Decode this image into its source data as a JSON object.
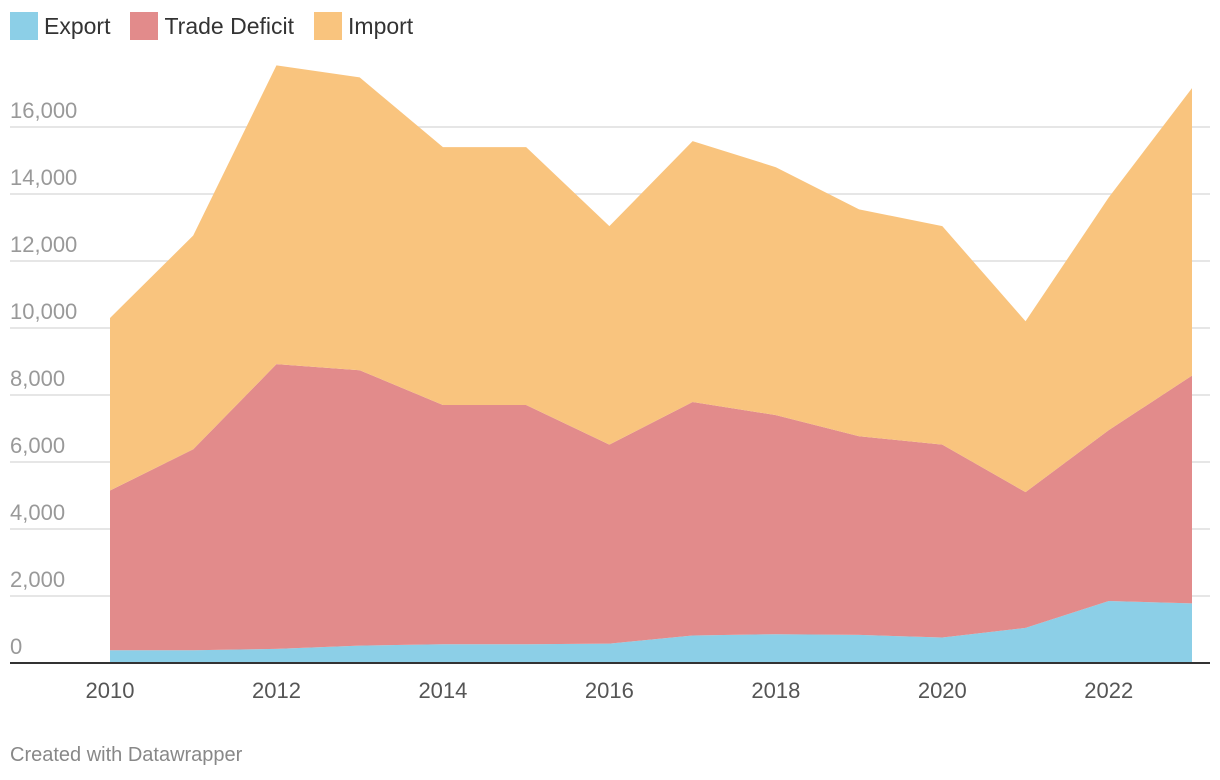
{
  "chart_data": {
    "type": "area",
    "stacked": true,
    "x": [
      2010,
      2011,
      2012,
      2013,
      2014,
      2015,
      2016,
      2017,
      2018,
      2019,
      2020,
      2021,
      2022,
      2023
    ],
    "series": [
      {
        "name": "Export",
        "color": "#8ccfe7",
        "values": [
          380,
          380,
          420,
          520,
          560,
          560,
          580,
          820,
          860,
          840,
          760,
          1050,
          1850,
          1780
        ]
      },
      {
        "name": "Trade Deficit",
        "color": "#e28b8b",
        "values": [
          4770,
          6000,
          8500,
          8220,
          7140,
          7140,
          5940,
          6970,
          6540,
          5930,
          5760,
          4050,
          5100,
          6800
        ]
      },
      {
        "name": "Import",
        "color": "#f9c47e",
        "values": [
          5150,
          6380,
          8920,
          8740,
          7700,
          7700,
          6520,
          7790,
          7400,
          6770,
          6520,
          5100,
          6950,
          8580
        ]
      }
    ],
    "yticks": [
      "0",
      "2,000",
      "4,000",
      "6,000",
      "8,000",
      "10,000",
      "12,000",
      "14,000",
      "16,000"
    ],
    "ytick_values": [
      0,
      2000,
      4000,
      6000,
      8000,
      10000,
      12000,
      14000,
      16000
    ],
    "xticks": [
      "2010",
      "2012",
      "2014",
      "2016",
      "2018",
      "2020",
      "2022"
    ],
    "xtick_values": [
      2010,
      2012,
      2014,
      2016,
      2018,
      2020,
      2022
    ],
    "ylim": [
      0,
      18000
    ],
    "xlim": [
      2010,
      2023
    ],
    "grid": true,
    "legend_position": "top-left"
  },
  "legend": [
    {
      "label": "Export",
      "color": "#8ccfe7"
    },
    {
      "label": "Trade Deficit",
      "color": "#e28b8b"
    },
    {
      "label": "Import",
      "color": "#f9c47e"
    }
  ],
  "footer": "Created with Datawrapper"
}
